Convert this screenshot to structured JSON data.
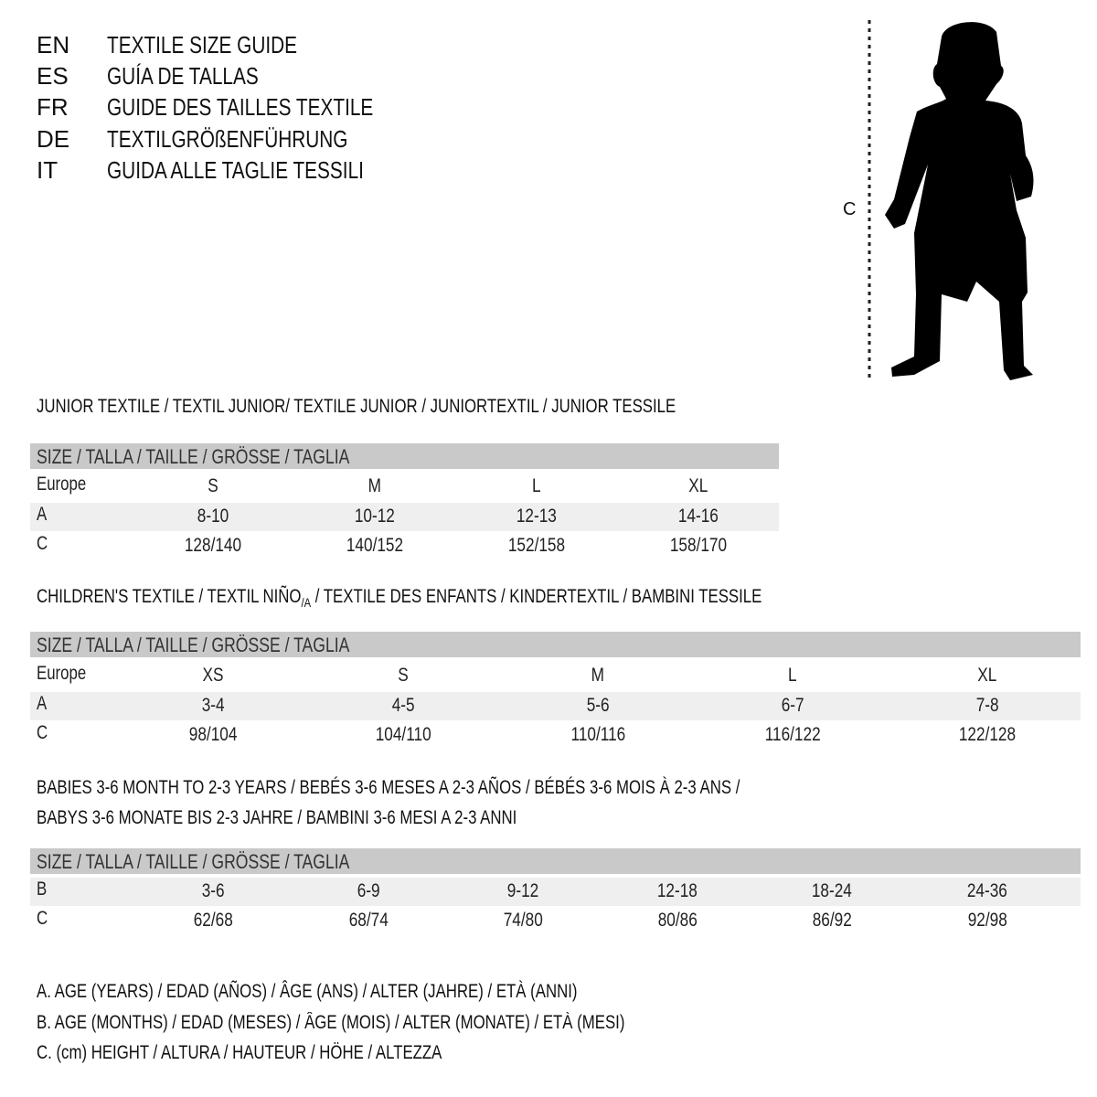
{
  "header": {
    "languages": [
      {
        "code": "EN",
        "text": "TEXTILE SIZE GUIDE"
      },
      {
        "code": "ES",
        "text": "GUÍA DE TALLAS"
      },
      {
        "code": "FR",
        "text": "GUIDE DES TAILLES TEXTILE"
      },
      {
        "code": "DE",
        "text": "TEXTILGRÖßENFÜHRUNG"
      },
      {
        "code": "IT",
        "text": "GUIDA ALLE TAGLIE TESSILI"
      }
    ]
  },
  "figure": {
    "measure_label": "C",
    "icon": "child-silhouette"
  },
  "size_header": "SIZE / TALLA / TAILLE / GRÖSSE / TAGLIA",
  "junior": {
    "title": "JUNIOR TEXTILE / TEXTIL JUNIOR/ TEXTILE JUNIOR / JUNIORTEXTIL / JUNIOR TESSILE",
    "rows": [
      {
        "label": "Europe",
        "values": [
          "S",
          "M",
          "L",
          "XL"
        ]
      },
      {
        "label": "A",
        "values": [
          "8-10",
          "10-12",
          "12-13",
          "14-16"
        ]
      },
      {
        "label": "C",
        "values": [
          "128/140",
          "140/152",
          "152/158",
          "158/170"
        ]
      }
    ]
  },
  "children": {
    "title_pre": "CHILDREN'S TEXTILE / TEXTIL NIÑO",
    "title_sub": "/A",
    "title_post": " / TEXTILE DES ENFANTS / KINDERTEXTIL / BAMBINI TESSILE",
    "rows": [
      {
        "label": "Europe",
        "values": [
          "XS",
          "S",
          "M",
          "L",
          "XL"
        ]
      },
      {
        "label": "A",
        "values": [
          "3-4",
          "4-5",
          "5-6",
          "6-7",
          "7-8"
        ]
      },
      {
        "label": "C",
        "values": [
          "98/104",
          "104/110",
          "110/116",
          "116/122",
          "122/128"
        ]
      }
    ]
  },
  "babies": {
    "title_line1": "BABIES 3-6 MONTH TO 2-3 YEARS / BEBÉS 3-6 MESES A 2-3 AÑOS / BÉBÉS 3-6 MOIS À 2-3 ANS /",
    "title_line2": "BABYS 3-6 MONATE BIS 2-3 JAHRE / BAMBINI 3-6 MESI A 2-3 ANNI",
    "rows": [
      {
        "label": "B",
        "values": [
          "3-6",
          "6-9",
          "9-12",
          "12-18",
          "18-24",
          "24-36"
        ]
      },
      {
        "label": "C",
        "values": [
          "62/68",
          "68/74",
          "74/80",
          "80/86",
          "86/92",
          "92/98"
        ]
      }
    ]
  },
  "legend": [
    "A. AGE (YEARS) / EDAD (AÑOS) / ÂGE (ANS) / ALTER (JAHRE) / ETÀ (ANNI)",
    "B. AGE (MONTHS) / EDAD (MESES) / ÂGE (MOIS) / ALTER (MONATE) / ETÀ (MESI)",
    "C. (cm) HEIGHT / ALTURA / HAUTEUR / HÖHE / ALTEZZA"
  ],
  "colors": {
    "header_bar": "#c9c9c9",
    "alt_row": "#efefef",
    "text": "#111111"
  }
}
